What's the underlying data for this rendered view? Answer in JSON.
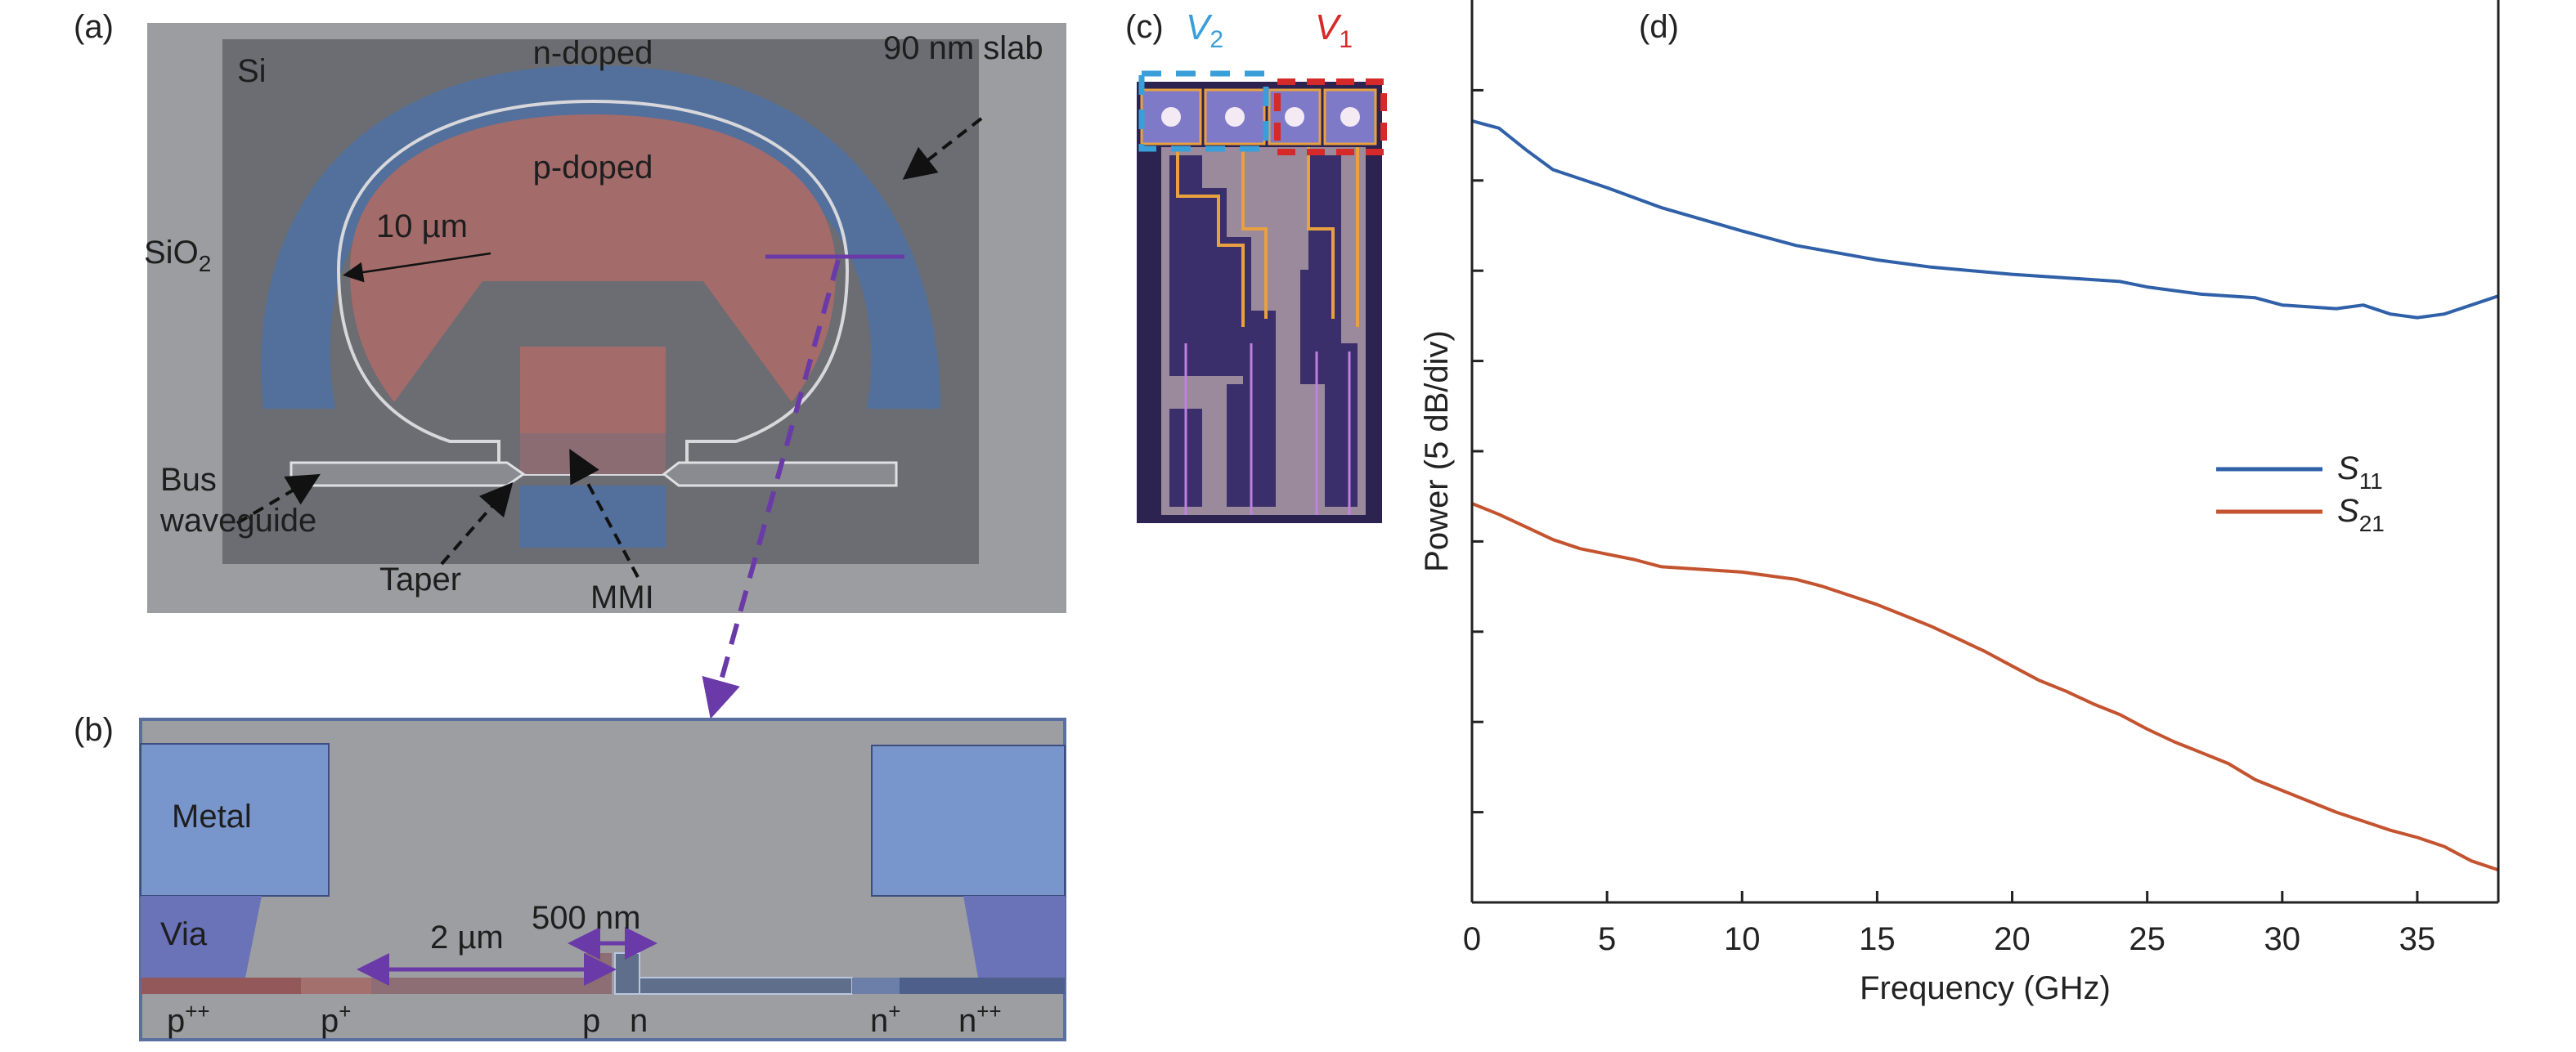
{
  "panel_a": {
    "label": "(a)",
    "si": "Si",
    "n_doped": "n-doped",
    "slab": "90 nm slab",
    "p_doped": "p-doped",
    "sio2": "SiO",
    "sio2_sub": "2",
    "radius": "10 µm",
    "bus_line1": "Bus",
    "bus_line2": "waveguide",
    "taper": "Taper",
    "mmi": "MMI",
    "colors": {
      "sio2": "#9c9da1",
      "si": "#6b6d72",
      "n_doped": "#52709b",
      "p_doped": "#a46b6b",
      "cut_line": "#6a3aa8"
    }
  },
  "panel_b": {
    "label": "(b)",
    "metal": "Metal",
    "via": "Via",
    "width_2um": "2 µm",
    "width_500nm": "500 nm",
    "doping": [
      {
        "base": "p",
        "sup": "++"
      },
      {
        "base": "p",
        "sup": "+"
      },
      {
        "base": "p",
        "sup": ""
      },
      {
        "base": "n",
        "sup": ""
      },
      {
        "base": "n",
        "sup": "+"
      },
      {
        "base": "n",
        "sup": "++"
      }
    ],
    "colors": {
      "metal": "#7895cc",
      "via": "#6a72b8",
      "oxide": "#9d9ea2"
    }
  },
  "panel_c": {
    "label": "(c)",
    "v2": "V",
    "v2_sub": "2",
    "v1": "V",
    "v1_sub": "1",
    "colors": {
      "v2": "#3a9fd8",
      "v1": "#d62a2a"
    }
  },
  "panel_d": {
    "label": "(d)"
  },
  "chart_data": {
    "type": "line",
    "xlabel": "Frequency (GHz)",
    "ylabel": "Power (5 dB/div)",
    "xlim": [
      0,
      38
    ],
    "ylim": [
      0,
      50
    ],
    "xticks": [
      "0",
      "5",
      "10",
      "15",
      "20",
      "25",
      "30",
      "35"
    ],
    "y_tick_step_db": 5,
    "y_tick_labels_shown": false,
    "grid": false,
    "legend_position": "right",
    "series": [
      {
        "name": "S11",
        "name_base": "S",
        "name_sub": "11",
        "color": "#2f60a8",
        "x": [
          0,
          1,
          2,
          3,
          4,
          5,
          7,
          10,
          12,
          15,
          17,
          20,
          22,
          24,
          25,
          27,
          29,
          30,
          32,
          33,
          34,
          35,
          36,
          37,
          38
        ],
        "y": [
          43.3,
          42.9,
          41.7,
          40.6,
          40.1,
          39.6,
          38.5,
          37.2,
          36.4,
          35.6,
          35.2,
          34.8,
          34.6,
          34.4,
          34.1,
          33.7,
          33.5,
          33.1,
          32.9,
          33.1,
          32.6,
          32.4,
          32.6,
          33.1,
          33.6
        ]
      },
      {
        "name": "S21",
        "name_base": "S",
        "name_sub": "21",
        "color": "#c4532f",
        "x": [
          0,
          1,
          2,
          3,
          4,
          5,
          6,
          7,
          8,
          10,
          11,
          12,
          13,
          14,
          15,
          16,
          17,
          18,
          19,
          20,
          21,
          22,
          23,
          24,
          25,
          26,
          27,
          28,
          29,
          30,
          31,
          32,
          33,
          34,
          35,
          36,
          37,
          38
        ],
        "y": [
          22.1,
          21.5,
          20.8,
          20.1,
          19.6,
          19.3,
          19.0,
          18.6,
          18.5,
          18.3,
          18.1,
          17.9,
          17.5,
          17.0,
          16.5,
          15.9,
          15.3,
          14.6,
          13.9,
          13.1,
          12.3,
          11.7,
          11.0,
          10.4,
          9.6,
          8.9,
          8.3,
          7.7,
          6.8,
          6.2,
          5.6,
          5.0,
          4.5,
          4.0,
          3.6,
          3.1,
          2.3,
          1.8
        ]
      }
    ]
  }
}
